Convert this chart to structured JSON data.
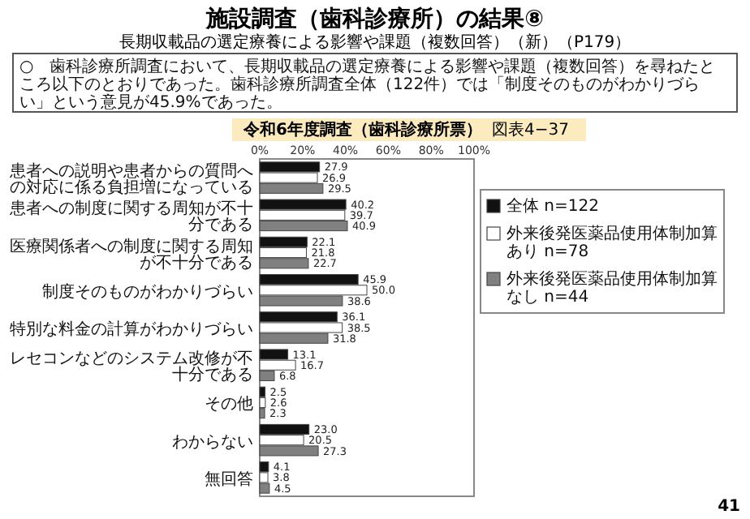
{
  "chart_data": {
    "type": "bar",
    "orientation": "horizontal",
    "title": "施設調査（歯科診療所）の結果⑧",
    "subtitle": "長期収載品の選定療養による影響や課題（複数回答）（新）（P179）",
    "annotations": [
      "○　歯科診療所調査において、長期収載品の選定療養による影響や課題（複数回答）を尋ねたところ以下のとおりであった。歯科診療所調査全体（122件）では「制度そのものがわかりづらい」という意見が45.9%であった。",
      "令和6年度調査（歯科診療所票）",
      "図表4−37",
      "41"
    ],
    "categories": [
      "患者への説明や患者からの質問への対応に係る負担増になっている",
      "患者への制度に関する周知が不十分である",
      "医療関係者への制度に関する周知が不十分である",
      "制度そのものがわかりづらい",
      "特別な料金の計算がわかりづらい",
      "レセコンなどのシステム改修が不十分である",
      "その他",
      "わからない",
      "無回答"
    ],
    "series": [
      {
        "name": "全体 n=122",
        "color": "#111111",
        "values": [
          27.9,
          40.2,
          22.1,
          45.9,
          36.1,
          13.1,
          2.5,
          23.0,
          4.1
        ],
        "value_labels": [
          "27.9",
          "40.2",
          "22.1",
          "45.9",
          "36.1",
          "13.1",
          "2.5",
          "23.0",
          "4.1"
        ]
      },
      {
        "name": "外来後発医薬品使用体制加算あり n=78",
        "color": "#ffffff",
        "values": [
          26.9,
          39.7,
          21.8,
          50.0,
          38.5,
          16.7,
          2.6,
          20.5,
          3.8
        ],
        "value_labels": [
          "26.9",
          "39.7",
          "21.8",
          "50.0",
          "38.5",
          "16.7",
          "2.6",
          "20.5",
          "3.8"
        ]
      },
      {
        "name": "外来後発医薬品使用体制加算なし n=44",
        "color": "#808080",
        "values": [
          29.5,
          40.9,
          22.7,
          38.6,
          31.8,
          6.8,
          2.3,
          27.3,
          4.5
        ],
        "value_labels": [
          "29.5",
          "40.9",
          "22.7",
          "38.6",
          "31.8",
          "6.8",
          "2.3",
          "27.3",
          "4.5"
        ]
      }
    ],
    "xlim": [
      0,
      100
    ],
    "xticks": [
      {
        "value": 0,
        "label": "0%"
      },
      {
        "value": 20,
        "label": "20%"
      },
      {
        "value": 40,
        "label": "40%"
      },
      {
        "value": 60,
        "label": "60%"
      },
      {
        "value": 80,
        "label": "80%"
      },
      {
        "value": 100,
        "label": "100%"
      }
    ],
    "legend": "right"
  }
}
